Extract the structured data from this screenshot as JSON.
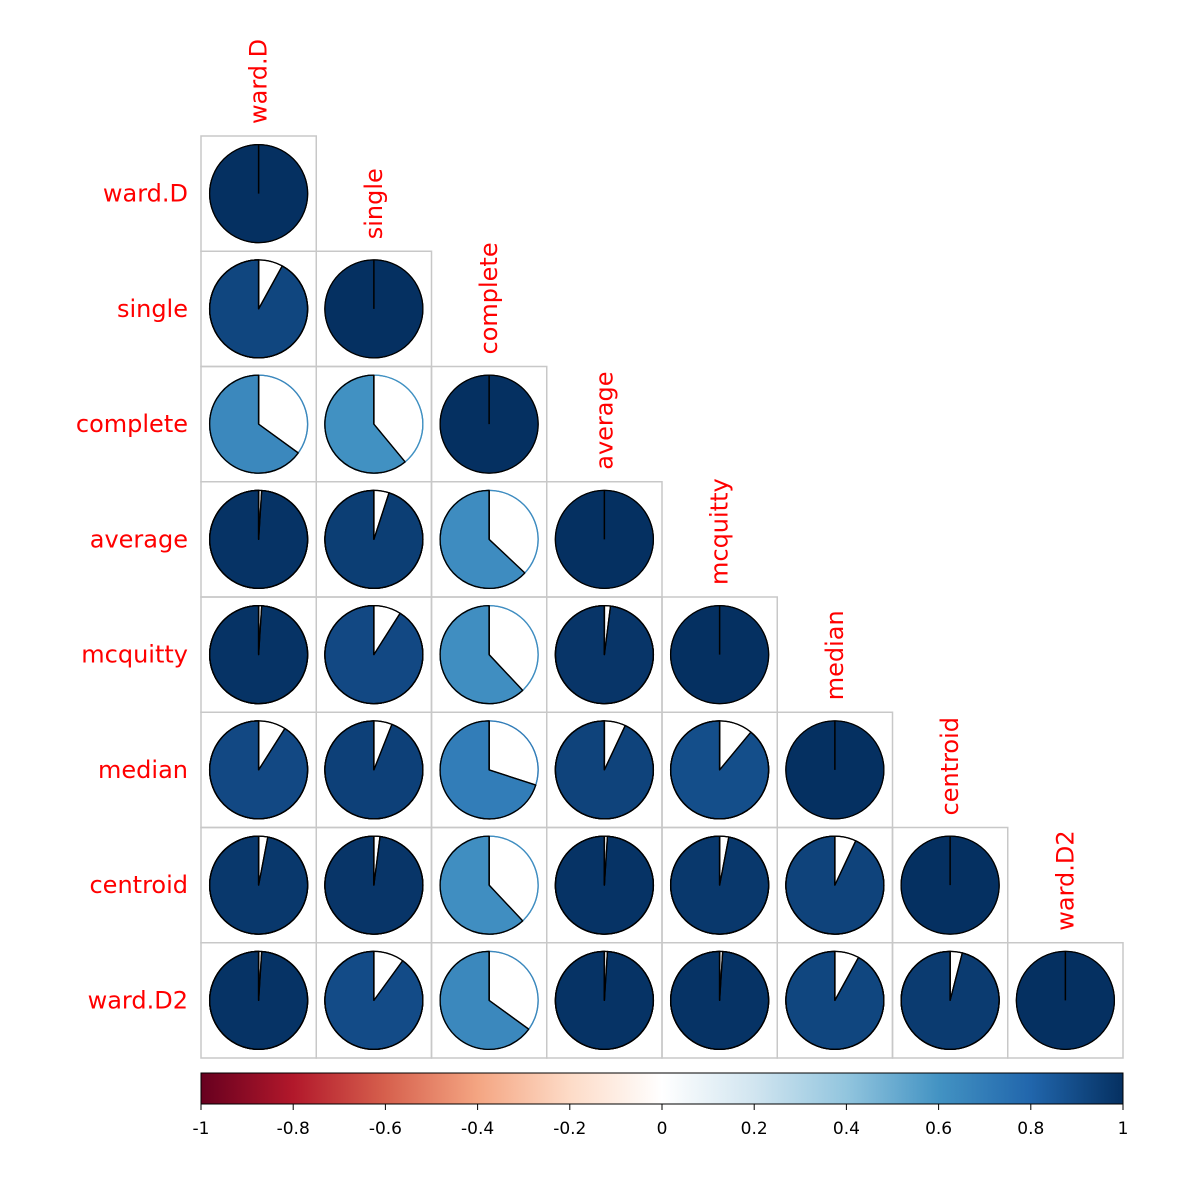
{
  "chart_data": {
    "type": "heatmap",
    "variables": [
      "ward.D",
      "single",
      "complete",
      "average",
      "mcquitty",
      "median",
      "centroid",
      "ward.D2"
    ],
    "correlations": [
      [
        1.0
      ],
      [
        0.92,
        1.0
      ],
      [
        0.65,
        0.61,
        1.0
      ],
      [
        0.99,
        0.95,
        0.63,
        1.0
      ],
      [
        0.99,
        0.91,
        0.62,
        0.98,
        1.0
      ],
      [
        0.91,
        0.94,
        0.7,
        0.93,
        0.89,
        1.0
      ],
      [
        0.97,
        0.98,
        0.62,
        0.99,
        0.97,
        0.93,
        1.0
      ],
      [
        0.99,
        0.9,
        0.65,
        0.99,
        0.99,
        0.92,
        0.96,
        1.0
      ]
    ],
    "method": "pie",
    "matrix_part": "lower",
    "label_color": "#ff0000",
    "colorbar": {
      "range": [
        -1,
        1
      ],
      "ticks": [
        "-1",
        "-0.8",
        "-0.6",
        "-0.4",
        "-0.2",
        "0",
        "0.2",
        "0.4",
        "0.6",
        "0.8",
        "1"
      ],
      "colors": [
        "#67001f",
        "#b2182b",
        "#d6604d",
        "#f4a582",
        "#fddbc7",
        "#ffffff",
        "#d1e5f0",
        "#92c5de",
        "#4393c3",
        "#2166ac",
        "#053061"
      ]
    }
  }
}
